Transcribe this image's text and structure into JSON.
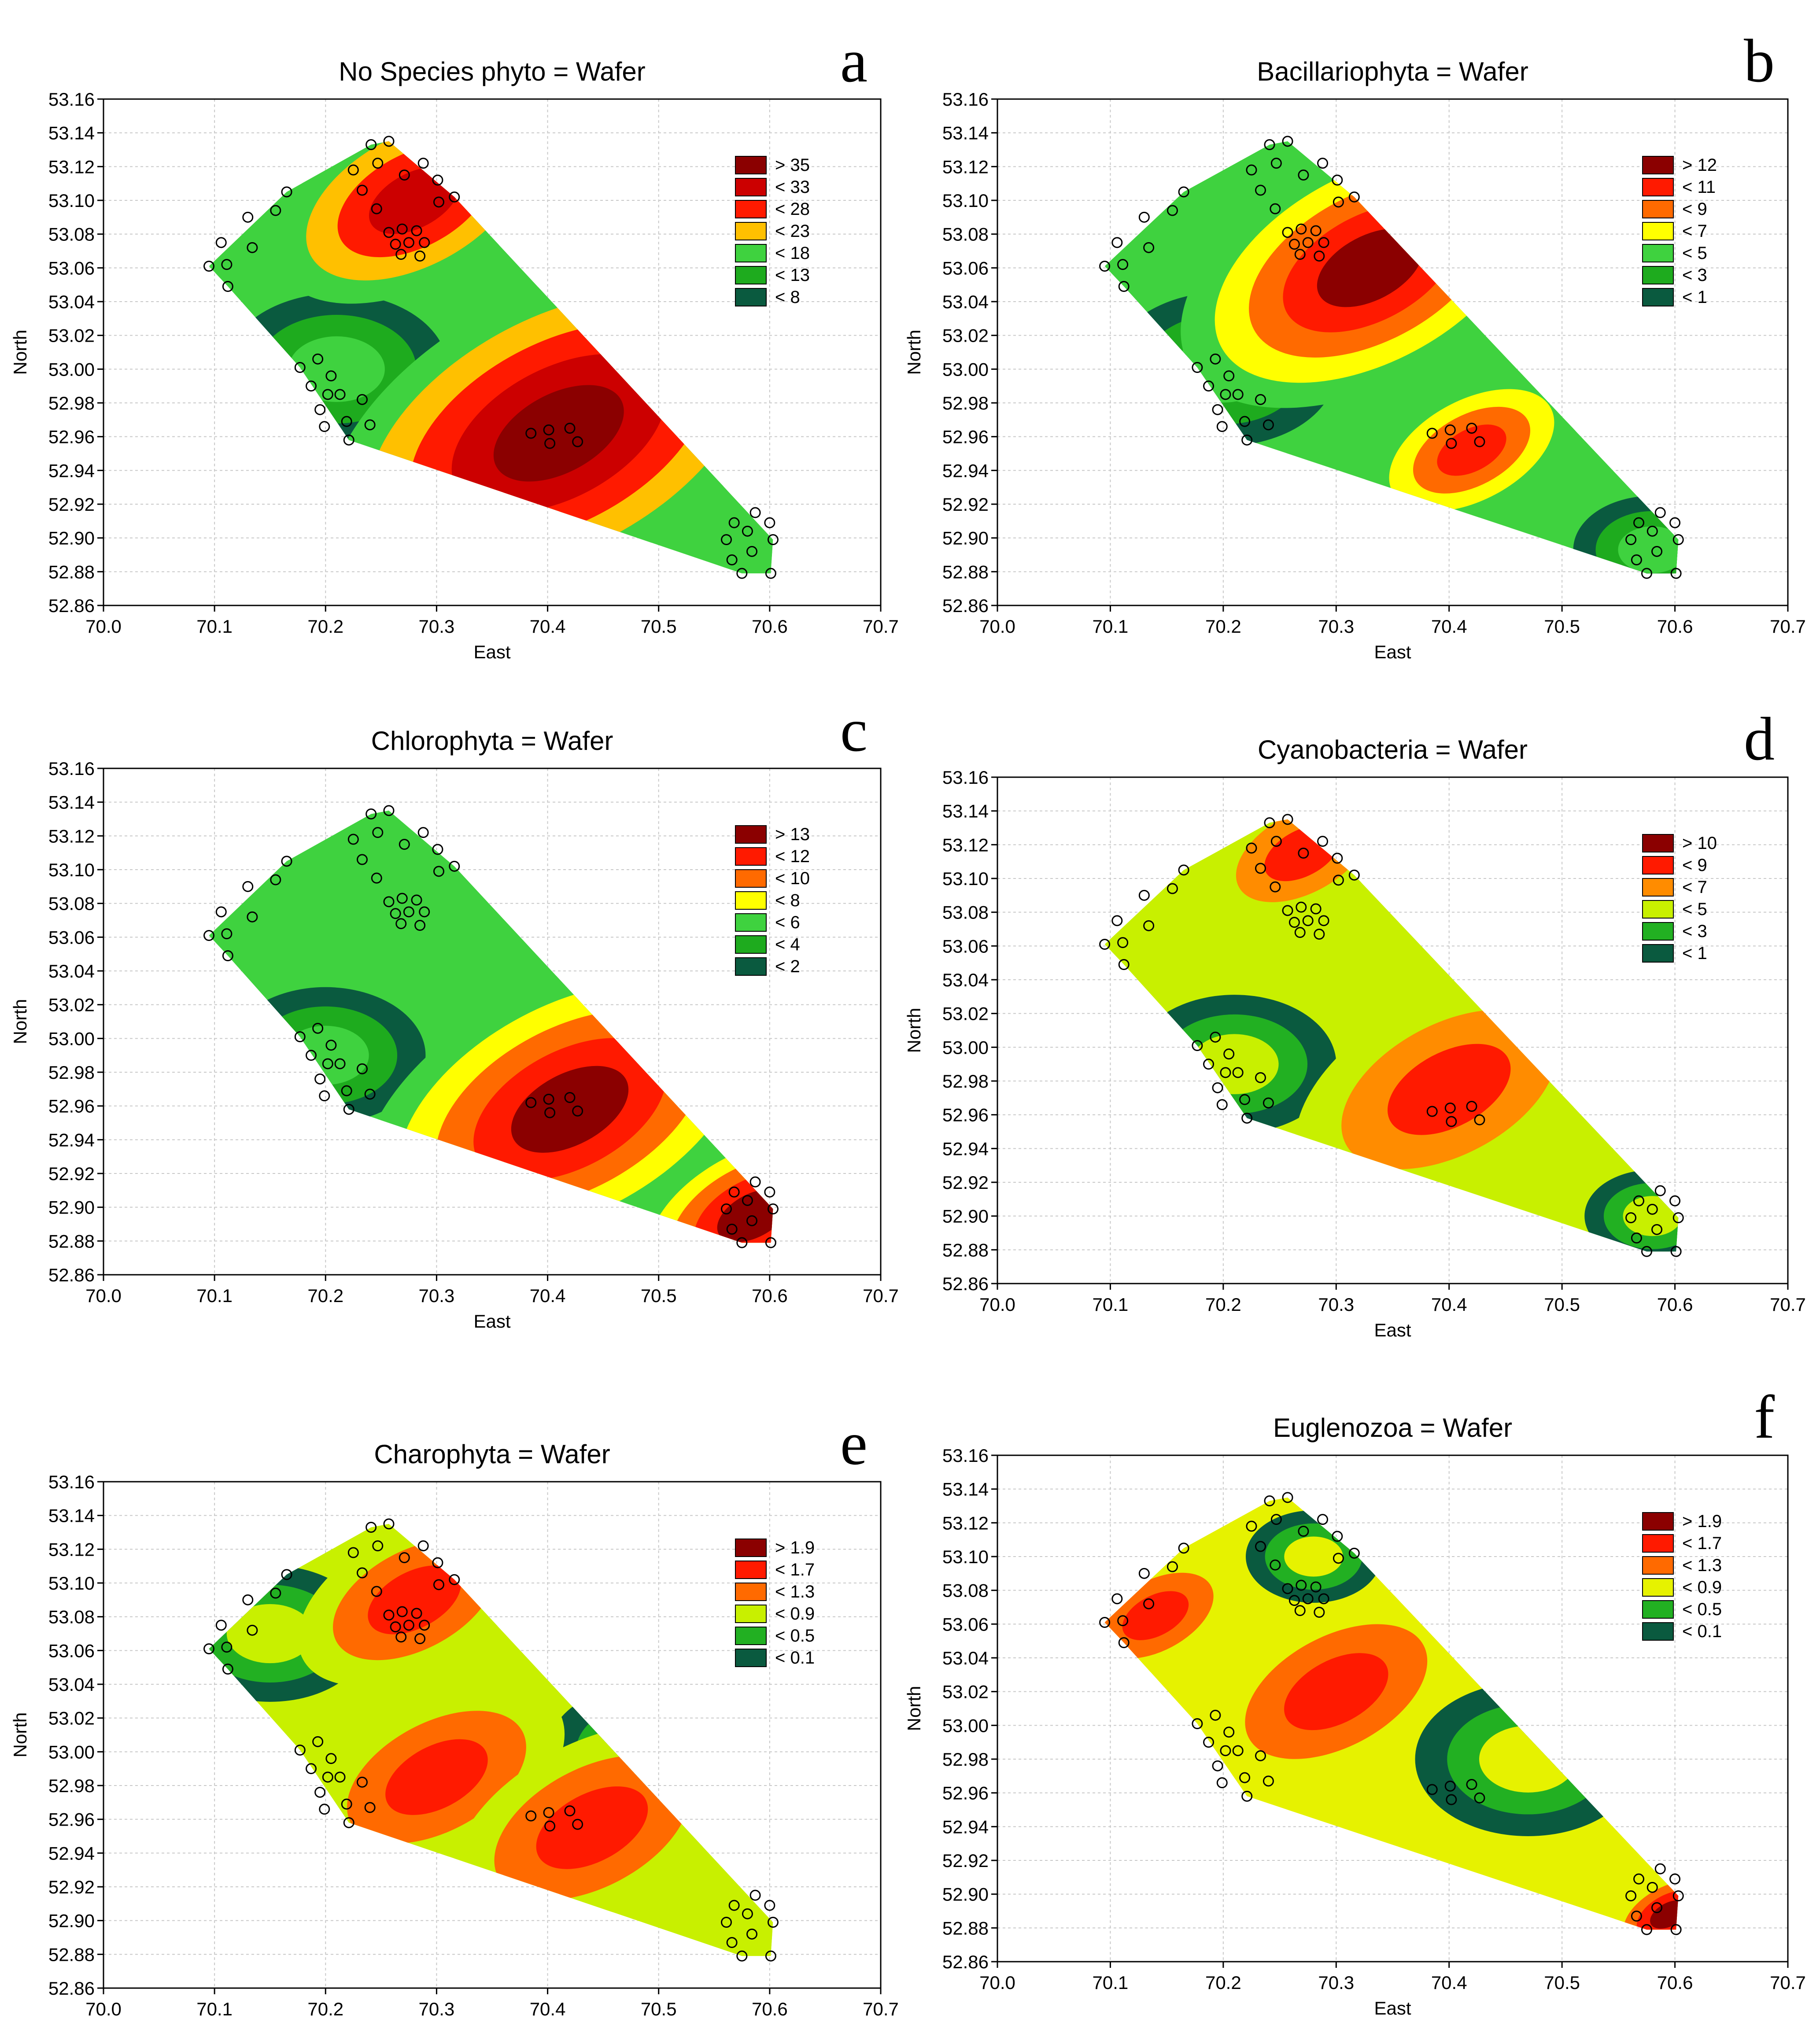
{
  "figure": {
    "type": "contour-grid",
    "panel_count": 6
  },
  "palette": {
    "green_scale": [
      "#0a5a3f",
      "#1e8a1e",
      "#22b022",
      "#3fd23f"
    ],
    "warm_scale": [
      "#c8f000",
      "#ffff00",
      "#ffc000",
      "#ff6a00",
      "#ff1a00",
      "#cc0000",
      "#8b0000"
    ],
    "frame": "#000000",
    "grid": "#c8c8c8",
    "marker_stroke": "#000000",
    "marker_fill": "none"
  },
  "sampling_points": [
    {
      "east": 70.095,
      "north": 53.061
    },
    {
      "east": 70.106,
      "north": 53.075
    },
    {
      "east": 70.111,
      "north": 53.062
    },
    {
      "east": 70.112,
      "north": 53.049
    },
    {
      "east": 70.13,
      "north": 53.09
    },
    {
      "east": 70.134,
      "north": 53.072
    },
    {
      "east": 70.155,
      "north": 53.094
    },
    {
      "east": 70.165,
      "north": 53.105
    },
    {
      "east": 70.177,
      "north": 53.001
    },
    {
      "east": 70.187,
      "north": 52.99
    },
    {
      "east": 70.193,
      "north": 53.006
    },
    {
      "east": 70.195,
      "north": 52.976
    },
    {
      "east": 70.199,
      "north": 52.966
    },
    {
      "east": 70.202,
      "north": 52.985
    },
    {
      "east": 70.205,
      "north": 52.996
    },
    {
      "east": 70.213,
      "north": 52.985
    },
    {
      "east": 70.219,
      "north": 52.969
    },
    {
      "east": 70.221,
      "north": 52.958
    },
    {
      "east": 70.225,
      "north": 53.118
    },
    {
      "east": 70.233,
      "north": 53.106
    },
    {
      "east": 70.233,
      "north": 52.982
    },
    {
      "east": 70.24,
      "north": 52.967
    },
    {
      "east": 70.241,
      "north": 53.133
    },
    {
      "east": 70.246,
      "north": 53.095
    },
    {
      "east": 70.247,
      "north": 53.122
    },
    {
      "east": 70.257,
      "north": 53.135
    },
    {
      "east": 70.257,
      "north": 53.081
    },
    {
      "east": 70.263,
      "north": 53.074
    },
    {
      "east": 70.268,
      "north": 53.068
    },
    {
      "east": 70.269,
      "north": 53.083
    },
    {
      "east": 70.271,
      "north": 53.115
    },
    {
      "east": 70.275,
      "north": 53.075
    },
    {
      "east": 70.282,
      "north": 53.082
    },
    {
      "east": 70.285,
      "north": 53.067
    },
    {
      "east": 70.288,
      "north": 53.122
    },
    {
      "east": 70.289,
      "north": 53.075
    },
    {
      "east": 70.301,
      "north": 53.112
    },
    {
      "east": 70.302,
      "north": 53.099
    },
    {
      "east": 70.316,
      "north": 53.102
    },
    {
      "east": 70.385,
      "north": 52.962
    },
    {
      "east": 70.401,
      "north": 52.964
    },
    {
      "east": 70.402,
      "north": 52.956
    },
    {
      "east": 70.42,
      "north": 52.965
    },
    {
      "east": 70.427,
      "north": 52.957
    },
    {
      "east": 70.561,
      "north": 52.899
    },
    {
      "east": 70.566,
      "north": 52.887
    },
    {
      "east": 70.568,
      "north": 52.909
    },
    {
      "east": 70.575,
      "north": 52.879
    },
    {
      "east": 70.58,
      "north": 52.904
    },
    {
      "east": 70.584,
      "north": 52.892
    },
    {
      "east": 70.587,
      "north": 52.915
    },
    {
      "east": 70.6,
      "north": 52.909
    },
    {
      "east": 70.603,
      "north": 52.899
    },
    {
      "east": 70.601,
      "north": 52.879
    }
  ],
  "chart_data": [
    {
      "id": "a",
      "letter": "a",
      "type": "contour",
      "title": "No Species phyto = Wafer",
      "xlabel": "East",
      "ylabel": "North",
      "xlim": [
        70.0,
        70.7
      ],
      "ylim": [
        52.86,
        53.16
      ],
      "xticks": [
        "70.0",
        "70.1",
        "70.2",
        "70.3",
        "70.4",
        "70.5",
        "70.6",
        "70.7"
      ],
      "yticks": [
        "52.86",
        "52.88",
        "52.90",
        "52.92",
        "52.94",
        "52.96",
        "52.98",
        "53.00",
        "53.02",
        "53.04",
        "53.06",
        "53.08",
        "53.10",
        "53.12",
        "53.14",
        "53.16"
      ],
      "grid": true,
      "legend_position": "top-right",
      "legend": [
        {
          "label": "> 35",
          "color": "#8b0000"
        },
        {
          "label": "< 33",
          "color": "#cc0000"
        },
        {
          "label": "< 28",
          "color": "#ff1a00"
        },
        {
          "label": "< 23",
          "color": "#ffc000"
        },
        {
          "label": "< 18",
          "color": "#3fd23f"
        },
        {
          "label": "< 13",
          "color": "#1eab1e"
        },
        {
          "label": "< 8",
          "color": "#0a5a3f"
        }
      ],
      "hull": [
        [
          70.095,
          53.061
        ],
        [
          70.165,
          53.105
        ],
        [
          70.241,
          53.133
        ],
        [
          70.257,
          53.135
        ],
        [
          70.316,
          53.102
        ],
        [
          70.603,
          52.899
        ],
        [
          70.601,
          52.879
        ],
        [
          70.575,
          52.879
        ],
        [
          70.221,
          52.958
        ],
        [
          70.177,
          53.001
        ],
        [
          70.112,
          53.049
        ]
      ],
      "hot_spots": [
        {
          "east": 70.41,
          "north": 52.962,
          "color": "#8b0000",
          "scale": 1.0
        },
        {
          "east": 70.28,
          "north": 53.1,
          "color": "#cc0000",
          "scale": 0.6
        }
      ],
      "cold_spots": [
        {
          "east": 70.21,
          "north": 53.0,
          "color": "#0a5a3f",
          "scale": 0.5
        }
      ]
    },
    {
      "id": "b",
      "letter": "b",
      "type": "contour",
      "title": "Bacillariophyta = Wafer",
      "xlabel": "East",
      "ylabel": "North",
      "xlim": [
        70.0,
        70.7
      ],
      "ylim": [
        52.86,
        53.16
      ],
      "xticks": [
        "70.0",
        "70.1",
        "70.2",
        "70.3",
        "70.4",
        "70.5",
        "70.6",
        "70.7"
      ],
      "yticks": [
        "52.86",
        "52.88",
        "52.90",
        "52.92",
        "52.94",
        "52.96",
        "52.98",
        "53.00",
        "53.02",
        "53.04",
        "53.06",
        "53.08",
        "53.10",
        "53.12",
        "53.14",
        "53.16"
      ],
      "grid": true,
      "legend_position": "top-right",
      "legend": [
        {
          "label": "> 12",
          "color": "#8b0000"
        },
        {
          "label": "< 11",
          "color": "#ff1a00"
        },
        {
          "label": "< 9",
          "color": "#ff6a00"
        },
        {
          "label": "< 7",
          "color": "#ffff00"
        },
        {
          "label": "< 5",
          "color": "#3fd23f"
        },
        {
          "label": "< 3",
          "color": "#1eab1e"
        },
        {
          "label": "< 1",
          "color": "#0a5a3f"
        }
      ],
      "hull": [
        [
          70.095,
          53.061
        ],
        [
          70.165,
          53.105
        ],
        [
          70.241,
          53.133
        ],
        [
          70.257,
          53.135
        ],
        [
          70.316,
          53.102
        ],
        [
          70.603,
          52.899
        ],
        [
          70.601,
          52.879
        ],
        [
          70.575,
          52.879
        ],
        [
          70.221,
          52.958
        ],
        [
          70.177,
          53.001
        ],
        [
          70.112,
          53.049
        ]
      ],
      "hot_spots": [
        {
          "east": 70.33,
          "north": 53.06,
          "color": "#8b0000",
          "scale": 0.8
        },
        {
          "east": 70.42,
          "north": 52.952,
          "color": "#ff1a00",
          "scale": 0.45
        }
      ],
      "cold_spots": [
        {
          "east": 70.2,
          "north": 53.0,
          "color": "#0a5a3f",
          "scale": 0.5
        },
        {
          "east": 70.58,
          "north": 52.893,
          "color": "#0a5a3f",
          "scale": 0.35
        }
      ]
    },
    {
      "id": "c",
      "letter": "c",
      "type": "contour",
      "title": "Chlorophyta = Wafer",
      "xlabel": "East",
      "ylabel": "North",
      "xlim": [
        70.0,
        70.7
      ],
      "ylim": [
        52.86,
        53.16
      ],
      "xticks": [
        "70.0",
        "70.1",
        "70.2",
        "70.3",
        "70.4",
        "70.5",
        "70.6",
        "70.7"
      ],
      "yticks": [
        "52.86",
        "52.88",
        "52.90",
        "52.92",
        "52.94",
        "52.96",
        "52.98",
        "53.00",
        "53.02",
        "53.04",
        "53.06",
        "53.08",
        "53.10",
        "53.12",
        "53.14",
        "53.16"
      ],
      "grid": true,
      "legend_position": "top-right",
      "legend": [
        {
          "label": "> 13",
          "color": "#8b0000"
        },
        {
          "label": "< 12",
          "color": "#ff1a00"
        },
        {
          "label": "< 10",
          "color": "#ff6a00"
        },
        {
          "label": "< 8",
          "color": "#ffff00"
        },
        {
          "label": "< 6",
          "color": "#3fd23f"
        },
        {
          "label": "< 4",
          "color": "#1eab1e"
        },
        {
          "label": "< 2",
          "color": "#0a5a3f"
        }
      ],
      "hull": [
        [
          70.095,
          53.061
        ],
        [
          70.165,
          53.105
        ],
        [
          70.241,
          53.133
        ],
        [
          70.257,
          53.135
        ],
        [
          70.316,
          53.102
        ],
        [
          70.603,
          52.899
        ],
        [
          70.601,
          52.879
        ],
        [
          70.575,
          52.879
        ],
        [
          70.221,
          52.958
        ],
        [
          70.177,
          53.001
        ],
        [
          70.112,
          53.049
        ]
      ],
      "hot_spots": [
        {
          "east": 70.42,
          "north": 52.958,
          "color": "#cc0000",
          "scale": 0.9
        },
        {
          "east": 70.585,
          "north": 52.895,
          "color": "#8b0000",
          "scale": 0.55
        }
      ],
      "cold_spots": [
        {
          "east": 70.2,
          "north": 52.99,
          "color": "#0a5a3f",
          "scale": 0.45
        }
      ]
    },
    {
      "id": "d",
      "letter": "d",
      "type": "contour",
      "title": "Cyanobacteria = Wafer",
      "xlabel": "East",
      "ylabel": "North",
      "xlim": [
        70.0,
        70.7
      ],
      "ylim": [
        52.86,
        53.16
      ],
      "xticks": [
        "70.0",
        "70.1",
        "70.2",
        "70.3",
        "70.4",
        "70.5",
        "70.6",
        "70.7"
      ],
      "yticks": [
        "52.86",
        "52.88",
        "52.90",
        "52.92",
        "52.94",
        "52.96",
        "52.98",
        "53.00",
        "53.02",
        "53.04",
        "53.06",
        "53.08",
        "53.10",
        "53.12",
        "53.14",
        "53.16"
      ],
      "grid": true,
      "legend_position": "top-right",
      "legend": [
        {
          "label": "> 10",
          "color": "#8b0000"
        },
        {
          "label": "< 9",
          "color": "#ff1a00"
        },
        {
          "label": "< 7",
          "color": "#ff8c00"
        },
        {
          "label": "< 5",
          "color": "#c8f000"
        },
        {
          "label": "< 3",
          "color": "#22b022"
        },
        {
          "label": "< 1",
          "color": "#0a5a3f"
        }
      ],
      "hull": [
        [
          70.095,
          53.061
        ],
        [
          70.165,
          53.105
        ],
        [
          70.241,
          53.133
        ],
        [
          70.257,
          53.135
        ],
        [
          70.316,
          53.102
        ],
        [
          70.603,
          52.899
        ],
        [
          70.601,
          52.879
        ],
        [
          70.575,
          52.879
        ],
        [
          70.221,
          52.958
        ],
        [
          70.177,
          53.001
        ],
        [
          70.112,
          53.049
        ]
      ],
      "hot_spots": [
        {
          "east": 70.4,
          "north": 52.975,
          "color": "#ff1a00",
          "scale": 0.65
        },
        {
          "east": 70.27,
          "north": 53.115,
          "color": "#ff1a00",
          "scale": 0.4
        }
      ],
      "cold_spots": [
        {
          "east": 70.21,
          "north": 52.99,
          "color": "#0a5a3f",
          "scale": 0.45
        },
        {
          "east": 70.58,
          "north": 52.9,
          "color": "#0a5a3f",
          "scale": 0.3
        }
      ]
    },
    {
      "id": "e",
      "letter": "e",
      "type": "contour",
      "title": "Charophyta = Wafer",
      "xlabel": "East",
      "ylabel": "North",
      "xlim": [
        70.0,
        70.7
      ],
      "ylim": [
        52.86,
        53.16
      ],
      "xticks": [
        "70.0",
        "70.1",
        "70.2",
        "70.3",
        "70.4",
        "70.5",
        "70.6",
        "70.7"
      ],
      "yticks": [
        "52.86",
        "52.88",
        "52.90",
        "52.92",
        "52.94",
        "52.96",
        "52.98",
        "53.00",
        "53.02",
        "53.04",
        "53.06",
        "53.08",
        "53.10",
        "53.12",
        "53.14",
        "53.16"
      ],
      "grid": true,
      "legend_position": "top-right",
      "legend": [
        {
          "label": "> 1.9",
          "color": "#8b0000"
        },
        {
          "label": "< 1.7",
          "color": "#ff1a00"
        },
        {
          "label": "< 1.3",
          "color": "#ff6a00"
        },
        {
          "label": "< 0.9",
          "color": "#c8f000"
        },
        {
          "label": "< 0.5",
          "color": "#22b022"
        },
        {
          "label": "< 0.1",
          "color": "#0a5a3f"
        }
      ],
      "hull": [
        [
          70.095,
          53.061
        ],
        [
          70.165,
          53.105
        ],
        [
          70.241,
          53.133
        ],
        [
          70.257,
          53.135
        ],
        [
          70.316,
          53.102
        ],
        [
          70.603,
          52.899
        ],
        [
          70.601,
          52.879
        ],
        [
          70.575,
          52.879
        ],
        [
          70.221,
          52.958
        ],
        [
          70.177,
          53.001
        ],
        [
          70.112,
          53.049
        ]
      ],
      "hot_spots": [
        {
          "east": 70.28,
          "north": 53.09,
          "color": "#ff1a00",
          "scale": 0.5
        },
        {
          "east": 70.3,
          "north": 52.985,
          "color": "#ff1a00",
          "scale": 0.55
        },
        {
          "east": 70.44,
          "north": 52.955,
          "color": "#ff1a00",
          "scale": 0.6
        }
      ],
      "cold_spots": [
        {
          "east": 70.15,
          "north": 53.07,
          "color": "#0a5a3f",
          "scale": 0.45
        },
        {
          "east": 70.49,
          "north": 53.0,
          "color": "#0a5a3f",
          "scale": 0.45
        }
      ]
    },
    {
      "id": "f",
      "letter": "f",
      "type": "contour",
      "title": "Euglenozoa = Wafer",
      "xlabel": "East",
      "ylabel": "North",
      "xlim": [
        70.0,
        70.7
      ],
      "ylim": [
        52.86,
        53.16
      ],
      "xticks": [
        "70.0",
        "70.1",
        "70.2",
        "70.3",
        "70.4",
        "70.5",
        "70.6",
        "70.7"
      ],
      "yticks": [
        "52.86",
        "52.88",
        "52.90",
        "52.92",
        "52.94",
        "52.96",
        "52.98",
        "53.00",
        "53.02",
        "53.04",
        "53.06",
        "53.08",
        "53.10",
        "53.12",
        "53.14",
        "53.16"
      ],
      "grid": true,
      "legend_position": "top-right",
      "legend": [
        {
          "label": "> 1.9",
          "color": "#8b0000"
        },
        {
          "label": "< 1.7",
          "color": "#ff1a00"
        },
        {
          "label": "< 1.3",
          "color": "#ff6a00"
        },
        {
          "label": "< 0.9",
          "color": "#e6f200"
        },
        {
          "label": "< 0.5",
          "color": "#22b022"
        },
        {
          "label": "< 0.1",
          "color": "#0a5a3f"
        }
      ],
      "hull": [
        [
          70.095,
          53.061
        ],
        [
          70.165,
          53.105
        ],
        [
          70.241,
          53.133
        ],
        [
          70.257,
          53.135
        ],
        [
          70.316,
          53.102
        ],
        [
          70.603,
          52.899
        ],
        [
          70.601,
          52.879
        ],
        [
          70.575,
          52.879
        ],
        [
          70.221,
          52.958
        ],
        [
          70.177,
          53.001
        ],
        [
          70.112,
          53.049
        ]
      ],
      "hot_spots": [
        {
          "east": 70.3,
          "north": 53.02,
          "color": "#ff1a00",
          "scale": 0.55
        },
        {
          "east": 70.14,
          "north": 53.065,
          "color": "#ff1a00",
          "scale": 0.35
        },
        {
          "east": 70.595,
          "north": 52.888,
          "color": "#8b0000",
          "scale": 0.25
        }
      ],
      "cold_spots": [
        {
          "east": 70.47,
          "north": 52.98,
          "color": "#0a5a3f",
          "scale": 0.5
        },
        {
          "east": 70.28,
          "north": 53.1,
          "color": "#0a5a3f",
          "scale": 0.3
        }
      ]
    }
  ]
}
